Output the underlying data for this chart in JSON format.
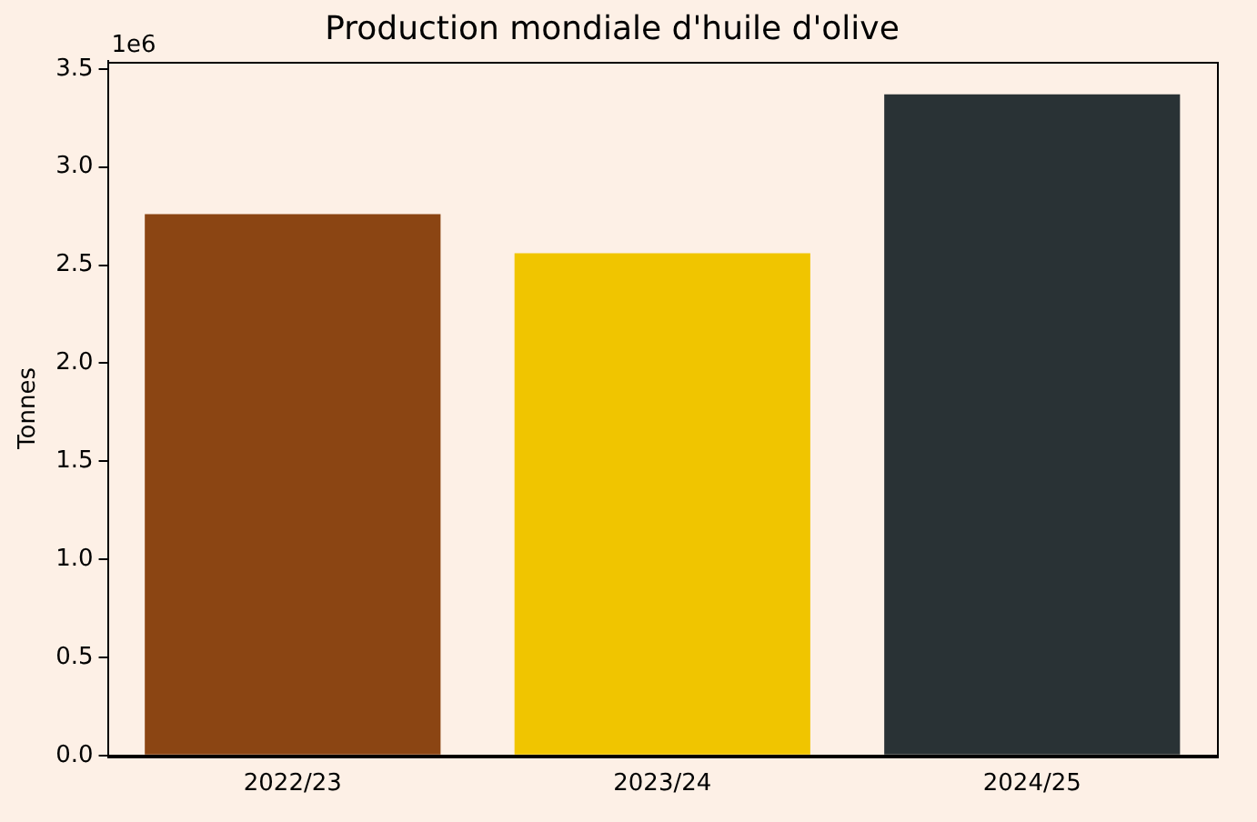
{
  "chart_data": {
    "type": "bar",
    "title": "Production mondiale d'huile d'olive",
    "ylabel": "Tonnes",
    "categories": [
      "2022/23",
      "2023/24",
      "2024/25"
    ],
    "values": [
      2.76,
      2.56,
      3.37
    ],
    "colors": [
      "#8b4513",
      "#f0c500",
      "#293235"
    ],
    "ylim": [
      0,
      3.54
    ],
    "yticks": [
      {
        "value": 0,
        "label": "0.0"
      },
      0.5,
      {
        "value": 1,
        "label": "1.0"
      },
      1.5,
      {
        "value": 2,
        "label": "2.0"
      },
      2.5,
      {
        "value": 3,
        "label": "3.0"
      },
      3.5
    ],
    "annotations": [
      "1e6"
    ],
    "grid": false,
    "legend": false
  }
}
